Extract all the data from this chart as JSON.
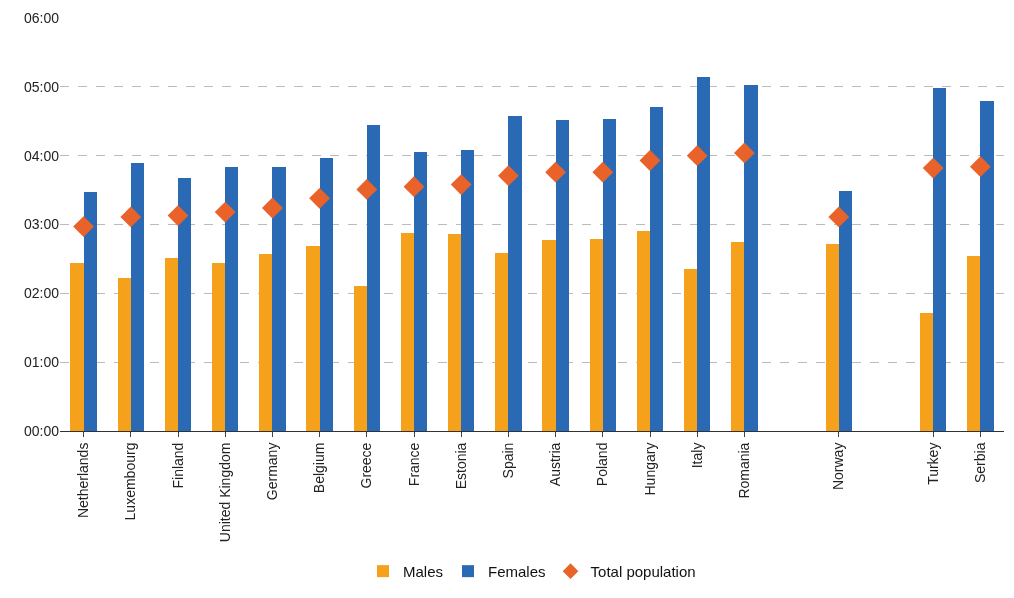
{
  "chart_data": {
    "type": "bar",
    "categories": [
      "Netherlands",
      "Luxembourg",
      "Finland",
      "United Kingdom",
      "Germany",
      "Belgium",
      "Greece",
      "France",
      "Estonia",
      "Spain",
      "Austria",
      "Poland",
      "Hungary",
      "Italy",
      "Romania",
      null,
      "Norway",
      null,
      "Turkey",
      "Serbia"
    ],
    "series": [
      {
        "name": "Males",
        "color": "#f5a11c",
        "values": [
          2.44,
          2.22,
          2.52,
          2.44,
          2.57,
          2.69,
          2.11,
          2.87,
          2.86,
          2.59,
          2.78,
          2.79,
          2.91,
          2.35,
          2.74,
          null,
          2.71,
          null,
          1.71,
          2.54
        ]
      },
      {
        "name": "Females",
        "color": "#2a6ab5",
        "values": [
          3.47,
          3.89,
          3.67,
          3.83,
          3.83,
          3.96,
          4.45,
          4.06,
          4.08,
          4.58,
          4.52,
          4.54,
          4.71,
          5.14,
          5.02,
          null,
          3.48,
          null,
          4.98,
          4.79
        ]
      },
      {
        "name": "Total population",
        "color": "#e8622a",
        "type": "scatter",
        "marker": "diamond",
        "values": [
          2.97,
          3.11,
          3.13,
          3.18,
          3.24,
          3.38,
          3.51,
          3.55,
          3.58,
          3.71,
          3.76,
          3.76,
          3.93,
          4.0,
          4.04,
          null,
          3.11,
          null,
          3.82,
          3.84
        ]
      }
    ],
    "ylim": [
      0,
      6
    ],
    "yticks": [
      {
        "value": 0,
        "label": "00:00"
      },
      {
        "value": 1,
        "label": "01:00"
      },
      {
        "value": 2,
        "label": "02:00"
      },
      {
        "value": 3,
        "label": "03:00"
      },
      {
        "value": 4,
        "label": "04:00"
      },
      {
        "value": 5,
        "label": "05:00"
      },
      {
        "value": 6,
        "label": "06:00"
      }
    ],
    "grid": "y",
    "legend": "bottom"
  }
}
